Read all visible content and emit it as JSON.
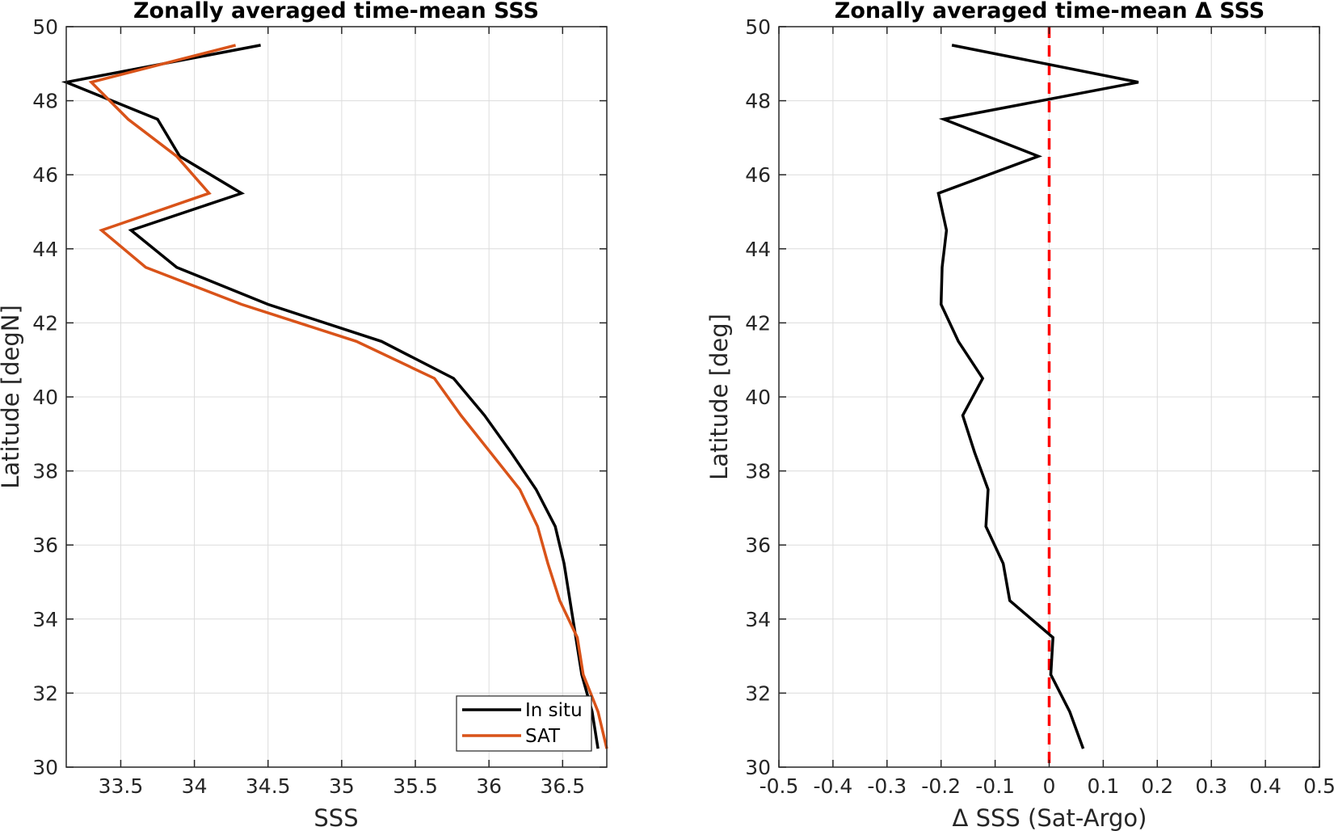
{
  "chart_data": [
    {
      "type": "line",
      "title": "Zonally averaged time-mean SSS",
      "xlabel": "SSS",
      "ylabel": "Latitude [degN]",
      "xlim": [
        33.13,
        36.8
      ],
      "ylim": [
        30,
        50
      ],
      "xticks": [
        33.5,
        34,
        34.5,
        35,
        35.5,
        36,
        36.5
      ],
      "xtick_labels": [
        "33.5",
        "34",
        "34.5",
        "35",
        "35.5",
        "36",
        "36.5"
      ],
      "yticks": [
        30,
        32,
        34,
        36,
        38,
        40,
        42,
        44,
        46,
        48,
        50
      ],
      "ytick_labels": [
        "30",
        "32",
        "34",
        "36",
        "38",
        "40",
        "42",
        "44",
        "46",
        "48",
        "50"
      ],
      "grid": true,
      "legend_position": "bottom-right",
      "y": [
        49.5,
        48.5,
        47.5,
        46.5,
        45.5,
        44.5,
        43.5,
        42.5,
        41.5,
        40.5,
        39.5,
        38.5,
        37.5,
        36.5,
        35.5,
        34.5,
        33.5,
        32.5,
        31.5,
        30.5
      ],
      "series": [
        {
          "name": "In situ",
          "color": "#000000",
          "values": [
            34.45,
            33.13,
            33.75,
            33.9,
            34.32,
            33.57,
            33.88,
            34.5,
            35.27,
            35.76,
            35.97,
            36.15,
            36.32,
            36.45,
            36.51,
            36.55,
            36.59,
            36.63,
            36.7,
            36.74
          ]
        },
        {
          "name": "SAT",
          "color": "#D95319",
          "values": [
            34.28,
            33.3,
            33.55,
            33.88,
            34.1,
            33.37,
            33.67,
            34.32,
            35.1,
            35.63,
            35.81,
            36.01,
            36.21,
            36.33,
            36.4,
            36.48,
            36.6,
            36.64,
            36.74,
            36.8
          ]
        }
      ]
    },
    {
      "type": "line",
      "title": "Zonally averaged time-mean Δ SSS",
      "xlabel": "Δ SSS (Sat-Argo)",
      "ylabel": "Latitude [deg]",
      "xlim": [
        -0.5,
        0.5
      ],
      "ylim": [
        30,
        50
      ],
      "xticks": [
        -0.5,
        -0.4,
        -0.3,
        -0.2,
        -0.1,
        0,
        0.1,
        0.2,
        0.3,
        0.4,
        0.5
      ],
      "xtick_labels": [
        "-0.5",
        "-0.4",
        "-0.3",
        "-0.2",
        "-0.1",
        "0",
        "0.1",
        "0.2",
        "0.3",
        "0.4",
        "0.5"
      ],
      "yticks": [
        30,
        32,
        34,
        36,
        38,
        40,
        42,
        44,
        46,
        48,
        50
      ],
      "ytick_labels": [
        "30",
        "32",
        "34",
        "36",
        "38",
        "40",
        "42",
        "44",
        "46",
        "48",
        "50"
      ],
      "grid": true,
      "y": [
        49.5,
        48.5,
        47.5,
        46.5,
        45.5,
        44.5,
        43.5,
        42.5,
        41.5,
        40.5,
        39.5,
        38.5,
        37.5,
        36.5,
        35.5,
        34.5,
        33.5,
        32.5,
        31.5,
        30.5
      ],
      "series": [
        {
          "color": "#000000",
          "values": [
            -0.18,
            0.165,
            -0.195,
            -0.02,
            -0.205,
            -0.19,
            -0.198,
            -0.2,
            -0.168,
            -0.123,
            -0.16,
            -0.138,
            -0.113,
            -0.117,
            -0.085,
            -0.073,
            0.007,
            0.003,
            0.038,
            0.063
          ]
        }
      ],
      "reference_line": {
        "x": 0,
        "color": "#FF0000",
        "style": "dashed"
      }
    }
  ]
}
